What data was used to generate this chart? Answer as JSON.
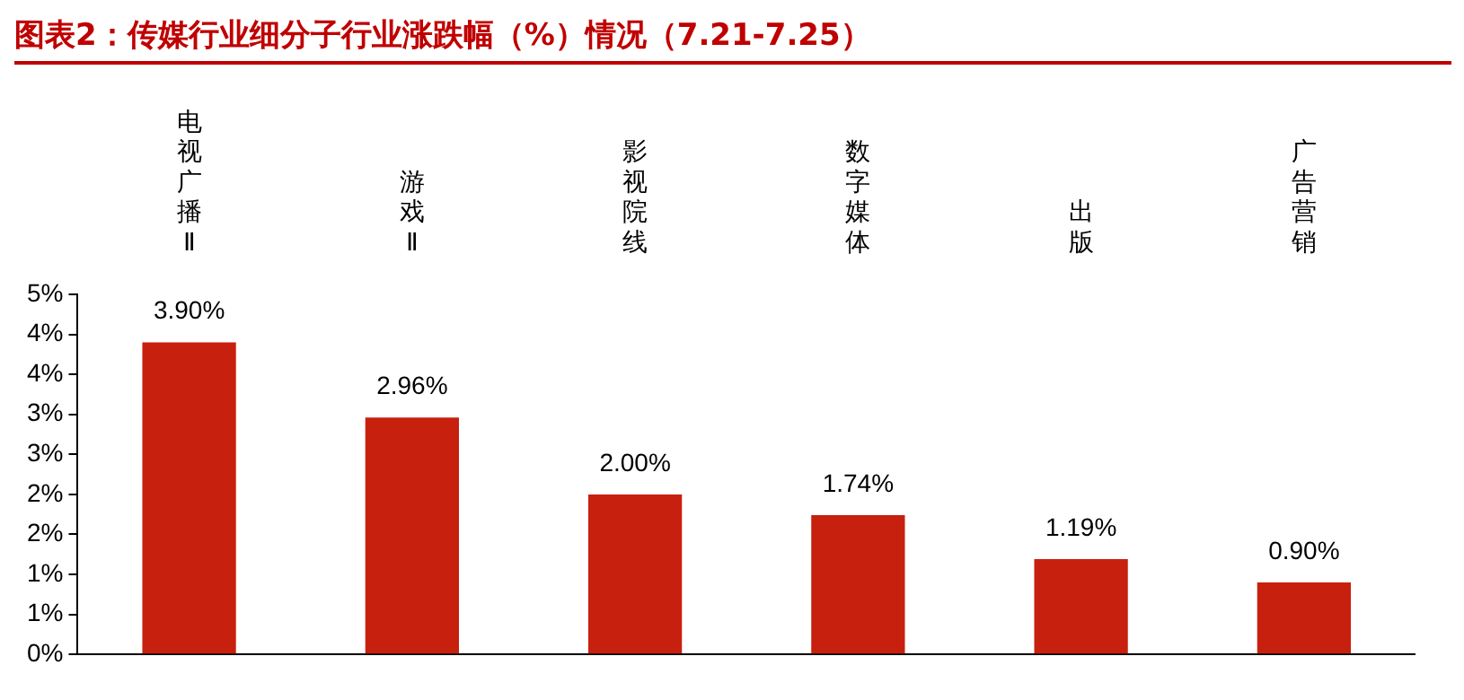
{
  "chart_data": {
    "type": "bar",
    "title": "图表2：传媒行业细分子行业涨跌幅（%）情况（7.21-7.25）",
    "categories": [
      "电视广播Ⅱ",
      "游戏Ⅱ",
      "影视院线",
      "数字媒体",
      "出版",
      "广告营销"
    ],
    "values": [
      3.9,
      2.96,
      2.0,
      1.74,
      1.19,
      0.9
    ],
    "value_labels": [
      "3.90%",
      "2.96%",
      "2.00%",
      "1.74%",
      "1.19%",
      "0.90%"
    ],
    "color": "#c8200e",
    "ylim": [
      0,
      4.5
    ],
    "yticks": [
      {
        "value": 0,
        "label": "0%"
      },
      {
        "value": 0.5,
        "label": "1%"
      },
      {
        "value": 1,
        "label": "1%"
      },
      {
        "value": 1.5,
        "label": "2%"
      },
      {
        "value": 2,
        "label": "2%"
      },
      {
        "value": 2.5,
        "label": "3%"
      },
      {
        "value": 3,
        "label": "3%"
      },
      {
        "value": 3.5,
        "label": "4%"
      },
      {
        "value": 4,
        "label": "4%"
      },
      {
        "value": 4.5,
        "label": "5%"
      }
    ],
    "grid": false,
    "legend": false
  }
}
